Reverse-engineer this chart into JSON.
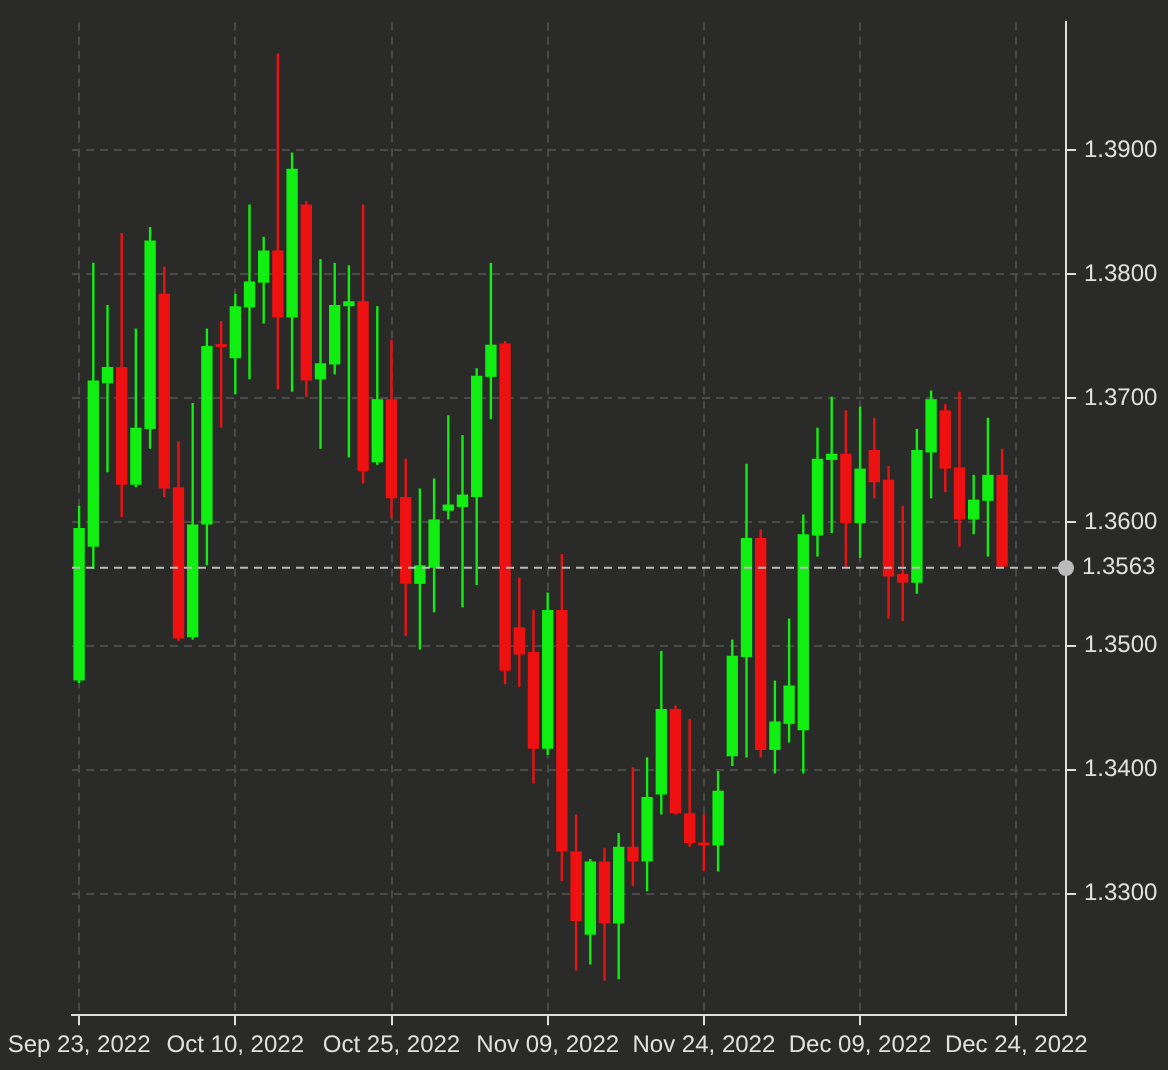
{
  "chart_data": {
    "type": "candlestick",
    "categories": [
      "Sep 23, 2022",
      null,
      null,
      null,
      null,
      null,
      null,
      null,
      null,
      null,
      null,
      "Oct 10, 2022",
      null,
      null,
      null,
      null,
      null,
      null,
      null,
      null,
      null,
      null,
      "Oct 25, 2022",
      null,
      null,
      null,
      null,
      null,
      null,
      null,
      null,
      null,
      null,
      "Nov 09, 2022",
      null,
      null,
      null,
      null,
      null,
      null,
      null,
      null,
      null,
      null,
      "Nov 24, 2022",
      null,
      null,
      null,
      null,
      null,
      null,
      null,
      null,
      null,
      null,
      "Dec 09, 2022",
      null,
      null,
      null,
      null,
      null,
      null,
      null,
      null,
      null,
      null,
      "Dec 24, 2022",
      null,
      null,
      null
    ],
    "ohlc": [
      [
        1.3472,
        1.3613,
        1.347,
        1.3595
      ],
      [
        1.358,
        1.3809,
        1.3562,
        1.3714
      ],
      [
        1.3712,
        1.3775,
        1.364,
        1.3725
      ],
      [
        1.3725,
        1.3833,
        1.3604,
        1.363
      ],
      [
        1.363,
        1.3756,
        1.3628,
        1.3676
      ],
      [
        1.3675,
        1.3838,
        1.3659,
        1.3827
      ],
      [
        1.3784,
        1.3806,
        1.362,
        1.3627
      ],
      [
        1.3628,
        1.3665,
        1.3504,
        1.3506
      ],
      [
        1.3507,
        1.3696,
        1.3505,
        1.3598
      ],
      [
        1.3598,
        1.3756,
        1.3565,
        1.3742
      ],
      [
        1.3743,
        1.3762,
        1.3676,
        1.3741
      ],
      [
        1.3732,
        1.3784,
        1.3703,
        1.3774
      ],
      [
        1.3773,
        1.3856,
        1.3715,
        1.3794
      ],
      [
        1.3793,
        1.383,
        1.376,
        1.3819
      ],
      [
        1.3819,
        1.3978,
        1.3707,
        1.3765
      ],
      [
        1.3765,
        1.3898,
        1.3705,
        1.3885
      ],
      [
        1.3856,
        1.3859,
        1.3701,
        1.3714
      ],
      [
        1.3715,
        1.3812,
        1.3659,
        1.3728
      ],
      [
        1.3727,
        1.3809,
        1.3719,
        1.3775
      ],
      [
        1.3774,
        1.3807,
        1.3652,
        1.3778
      ],
      [
        1.3778,
        1.3856,
        1.3631,
        1.3641
      ],
      [
        1.3648,
        1.3774,
        1.3646,
        1.3699
      ],
      [
        1.3699,
        1.3747,
        1.3603,
        1.3619
      ],
      [
        1.362,
        1.3651,
        1.3508,
        1.355
      ],
      [
        1.355,
        1.3627,
        1.3497,
        1.3565
      ],
      [
        1.3563,
        1.3635,
        1.3527,
        1.3602
      ],
      [
        1.3609,
        1.3686,
        1.3602,
        1.3614
      ],
      [
        1.3612,
        1.367,
        1.3531,
        1.3622
      ],
      [
        1.362,
        1.3724,
        1.3549,
        1.3718
      ],
      [
        1.3717,
        1.3809,
        1.3683,
        1.3743
      ],
      [
        1.3744,
        1.3746,
        1.3469,
        1.348
      ],
      [
        1.3515,
        1.3555,
        1.3467,
        1.3493
      ],
      [
        1.3495,
        1.3529,
        1.3389,
        1.3417
      ],
      [
        1.3417,
        1.3543,
        1.3412,
        1.3529
      ],
      [
        1.3529,
        1.3574,
        1.331,
        1.3334
      ],
      [
        1.3334,
        1.3364,
        1.3238,
        1.3278
      ],
      [
        1.3267,
        1.3328,
        1.3243,
        1.3326
      ],
      [
        1.3326,
        1.3337,
        1.323,
        1.3276
      ],
      [
        1.3276,
        1.3349,
        1.3231,
        1.3338
      ],
      [
        1.3338,
        1.3402,
        1.3306,
        1.3326
      ],
      [
        1.3326,
        1.341,
        1.3302,
        1.3378
      ],
      [
        1.338,
        1.3496,
        1.3364,
        1.3449
      ],
      [
        1.3449,
        1.3452,
        1.3364,
        1.3365
      ],
      [
        1.3365,
        1.3441,
        1.3338,
        1.3341
      ],
      [
        1.3341,
        1.3364,
        1.3318,
        1.3339
      ],
      [
        1.3339,
        1.3399,
        1.3318,
        1.3383
      ],
      [
        1.3411,
        1.3505,
        1.3403,
        1.3492
      ],
      [
        1.3491,
        1.3647,
        1.341,
        1.3587
      ],
      [
        1.3587,
        1.3594,
        1.341,
        1.3416
      ],
      [
        1.3416,
        1.3472,
        1.3397,
        1.3439
      ],
      [
        1.3437,
        1.3522,
        1.3422,
        1.3468
      ],
      [
        1.3432,
        1.3606,
        1.3397,
        1.359
      ],
      [
        1.3589,
        1.3676,
        1.3572,
        1.3651
      ],
      [
        1.365,
        1.3701,
        1.3591,
        1.3655
      ],
      [
        1.3655,
        1.369,
        1.3564,
        1.3599
      ],
      [
        1.3599,
        1.3693,
        1.3571,
        1.3643
      ],
      [
        1.3658,
        1.3684,
        1.3619,
        1.3632
      ],
      [
        1.3634,
        1.3645,
        1.3522,
        1.3556
      ],
      [
        1.3558,
        1.3613,
        1.352,
        1.3551
      ],
      [
        1.3551,
        1.3675,
        1.3542,
        1.3658
      ],
      [
        1.3656,
        1.3706,
        1.3619,
        1.3699
      ],
      [
        1.369,
        1.3695,
        1.3624,
        1.3643
      ],
      [
        1.3644,
        1.3705,
        1.358,
        1.3602
      ],
      [
        1.3602,
        1.3638,
        1.359,
        1.3618
      ],
      [
        1.3617,
        1.3684,
        1.3572,
        1.3638
      ],
      [
        1.3638,
        1.3659,
        1.3563,
        1.3564
      ],
      null,
      null,
      null,
      null
    ],
    "colors": [
      "#11ee11",
      "#11ee11",
      "#11ee11",
      "#ee1111",
      "#11ee11",
      "#11ee11",
      "#ee1111",
      "#ee1111",
      "#11ee11",
      "#11ee11",
      "#ee1111",
      "#11ee11",
      "#11ee11",
      "#11ee11",
      "#ee1111",
      "#11ee11",
      "#ee1111",
      "#11ee11",
      "#11ee11",
      "#11ee11",
      "#ee1111",
      "#11ee11",
      "#ee1111",
      "#ee1111",
      "#11ee11",
      "#11ee11",
      "#11ee11",
      "#11ee11",
      "#11ee11",
      "#11ee11",
      "#ee1111",
      "#ee1111",
      "#ee1111",
      "#11ee11",
      "#ee1111",
      "#ee1111",
      "#11ee11",
      "#ee1111",
      "#11ee11",
      "#ee1111",
      "#11ee11",
      "#11ee11",
      "#ee1111",
      "#ee1111",
      "#ee1111",
      "#11ee11",
      "#11ee11",
      "#11ee11",
      "#ee1111",
      "#11ee11",
      "#11ee11",
      "#11ee11",
      "#11ee11",
      "#11ee11",
      "#ee1111",
      "#11ee11",
      "#ee1111",
      "#ee1111",
      "#ee1111",
      "#11ee11",
      "#11ee11",
      "#ee1111",
      "#ee1111",
      "#11ee11",
      "#11ee11",
      "#ee1111",
      null,
      null,
      null,
      null
    ],
    "ylim": [
      1.3202,
      1.4003
    ],
    "yticks": [
      {
        "value": 1.33,
        "label": "1.3300"
      },
      {
        "value": 1.34,
        "label": "1.3400"
      },
      {
        "value": 1.35,
        "label": "1.3500"
      },
      {
        "value": 1.36,
        "label": "1.3600"
      },
      {
        "value": 1.37,
        "label": "1.3700"
      },
      {
        "value": 1.38,
        "label": "1.3800"
      },
      {
        "value": 1.39,
        "label": "1.3900"
      }
    ],
    "ref_lines": [
      {
        "axis": "y",
        "value": 1.3563,
        "label": "1.3563",
        "color": "#bbbbbb",
        "line_style": "dashed"
      }
    ],
    "grid": true
  }
}
